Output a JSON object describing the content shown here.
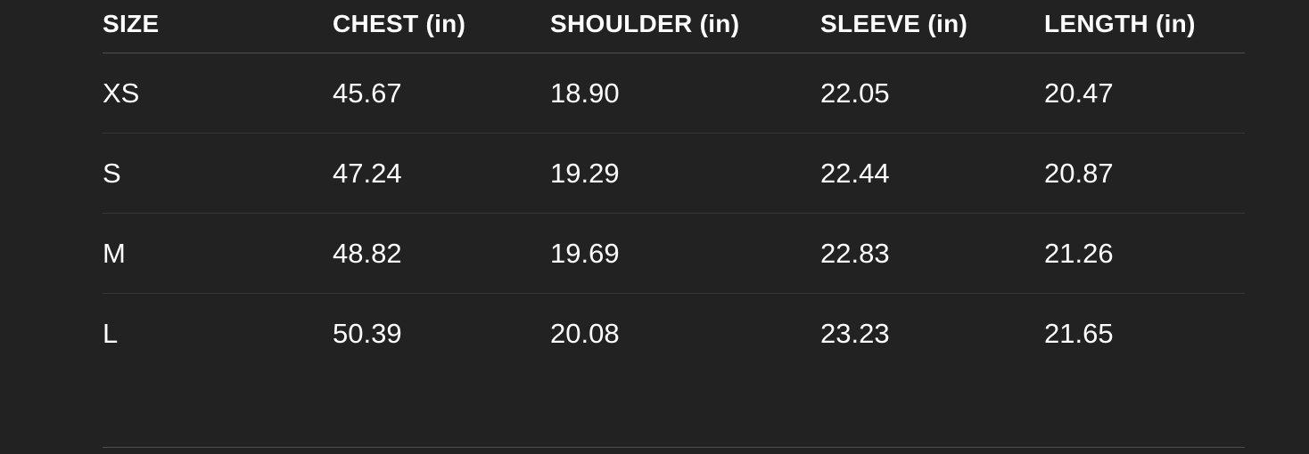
{
  "colors": {
    "background": "#222222",
    "text": "#fdfdfd",
    "divider_strong": "#4d4d4d",
    "divider_soft": "#363636"
  },
  "table": {
    "columns": [
      {
        "key": "size",
        "label": "SIZE"
      },
      {
        "key": "chest",
        "label": "CHEST (in)"
      },
      {
        "key": "shoulder",
        "label": "SHOULDER (in)"
      },
      {
        "key": "sleeve",
        "label": "SLEEVE (in)"
      },
      {
        "key": "length",
        "label": "LENGTH (in)"
      }
    ],
    "rows": [
      {
        "size": "XS",
        "chest": "45.67",
        "shoulder": "18.90",
        "sleeve": "22.05",
        "length": "20.47"
      },
      {
        "size": "S",
        "chest": "47.24",
        "shoulder": "19.29",
        "sleeve": "22.44",
        "length": "20.87"
      },
      {
        "size": "M",
        "chest": "48.82",
        "shoulder": "19.69",
        "sleeve": "22.83",
        "length": "21.26"
      },
      {
        "size": "L",
        "chest": "50.39",
        "shoulder": "20.08",
        "sleeve": "23.23",
        "length": "21.65"
      }
    ]
  }
}
